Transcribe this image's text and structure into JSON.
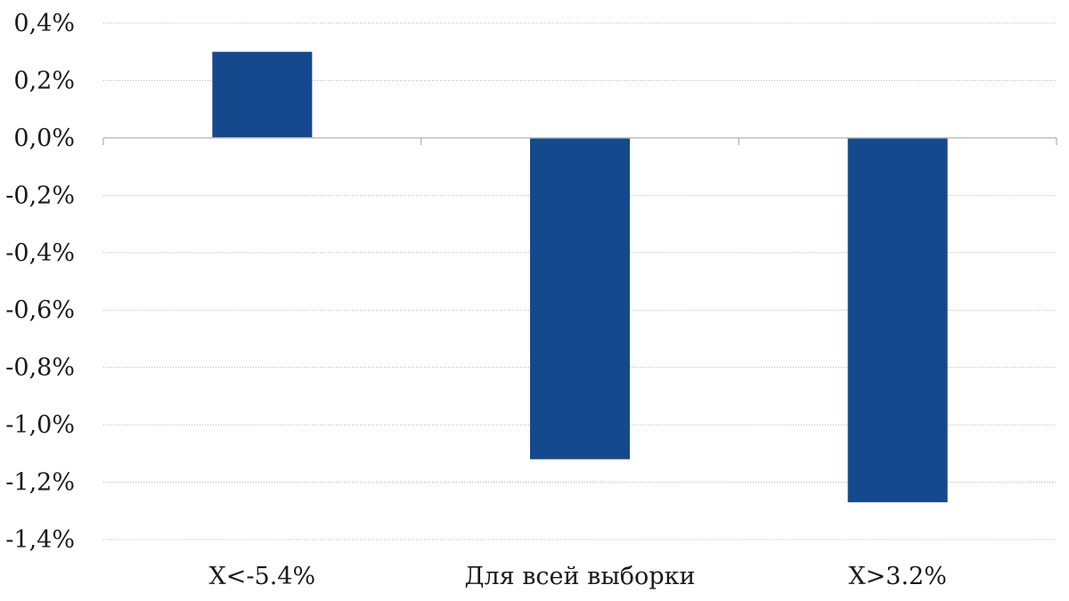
{
  "chart_data": {
    "type": "bar",
    "categories": [
      "X<-5.4%",
      "Для всей выборки",
      "X>3.2%"
    ],
    "values": [
      0.3,
      -1.12,
      -1.27
    ],
    "value_unit": "%",
    "ylim": [
      -1.4,
      0.4
    ],
    "yticks": [
      0.4,
      0.2,
      0.0,
      -0.2,
      -0.4,
      -0.6,
      -0.8,
      -1.0,
      -1.2,
      -1.4
    ],
    "ytick_labels": [
      "0,4%",
      "0,2%",
      "0,0%",
      "-0,2%",
      "-0,4%",
      "-0,6%",
      "-0,8%",
      "-1,0%",
      "-1,2%",
      "-1,4%"
    ],
    "grid": true,
    "legend": false,
    "bar_color": "#15498D",
    "title": "",
    "xlabel": "",
    "ylabel": ""
  }
}
